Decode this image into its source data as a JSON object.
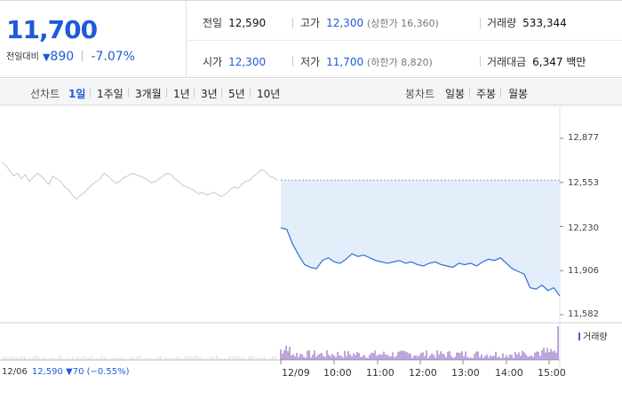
{
  "summary": {
    "current_price": "11,700",
    "change_label": "전일대비",
    "change_arrow": "▼",
    "change_amount": "890",
    "change_percent": "-7.07%",
    "prev_close_label": "전일",
    "prev_close": "12,590",
    "high_label": "고가",
    "high": "12,300",
    "upper_limit": "(상한가 16,360)",
    "volume_label": "거래량",
    "volume": "533,344",
    "open_label": "시가",
    "open": "12,300",
    "low_label": "저가",
    "low": "11,700",
    "lower_limit": "(하한가 8,820)",
    "trade_value_label": "거래대금",
    "trade_value": "6,347 백만"
  },
  "toolbar": {
    "line_chart_label": "선차트",
    "line_tabs": [
      "1일",
      "1주일",
      "3개월",
      "1년",
      "3년",
      "5년",
      "10년"
    ],
    "active_tab": "1일",
    "candle_chart_label": "봉차트",
    "candle_tabs": [
      "일봉",
      "주봉",
      "월봉"
    ]
  },
  "chart_data": {
    "type": "line",
    "y_ticks": [
      "12,877",
      "12,553",
      "12,230",
      "11,906",
      "11,582"
    ],
    "ylim": [
      11582,
      12877
    ],
    "x_labels": [
      "12/09",
      "10:00",
      "11:00",
      "12:00",
      "13:00",
      "14:00",
      "15:00"
    ],
    "prev_session_date": "12/06",
    "prev_session_close": "12,590",
    "prev_session_change": "▼70 (−0.55%)",
    "volume_legend": "거래량",
    "reference_price": 12570,
    "colors": {
      "today_line": "#2d6fd4",
      "prev_line": "#c8c8c8",
      "area_fill": "#e4edfa",
      "volume": "#7a4fb8"
    },
    "series": [
      {
        "values": [
          12700,
          12680,
          12640,
          12600,
          12620,
          12580,
          12610,
          12560,
          12590,
          12620,
          12600,
          12570,
          12540,
          12600,
          12580,
          12560,
          12520,
          12500,
          12460,
          12430,
          12460,
          12480,
          12510,
          12540,
          12560,
          12580,
          12620,
          12600,
          12570,
          12550,
          12560,
          12590,
          12600,
          12620,
          12610,
          12600,
          12590,
          12570,
          12550,
          12560,
          12580,
          12600,
          12620,
          12610,
          12580,
          12560,
          12530,
          12520,
          12510,
          12490,
          12470,
          12480,
          12460,
          12470,
          12480,
          12460,
          12450,
          12470,
          12500,
          12520,
          12510,
          12540,
          12560,
          12570,
          12600,
          12620,
          12650,
          12630,
          12600,
          12590,
          12570
        ]
      },
      {
        "values": [
          12220,
          12210,
          12100,
          12020,
          11950,
          11930,
          11920,
          11980,
          12000,
          11970,
          11960,
          11990,
          12030,
          12010,
          12020,
          12000,
          11980,
          11970,
          11960,
          11970,
          11980,
          11960,
          11970,
          11950,
          11940,
          11960,
          11970,
          11950,
          11940,
          11930,
          11960,
          11950,
          11960,
          11940,
          11970,
          11990,
          11980,
          12000,
          11960,
          11920,
          11900,
          11880,
          11780,
          11770,
          11800,
          11760,
          11780,
          11720
        ]
      }
    ]
  }
}
